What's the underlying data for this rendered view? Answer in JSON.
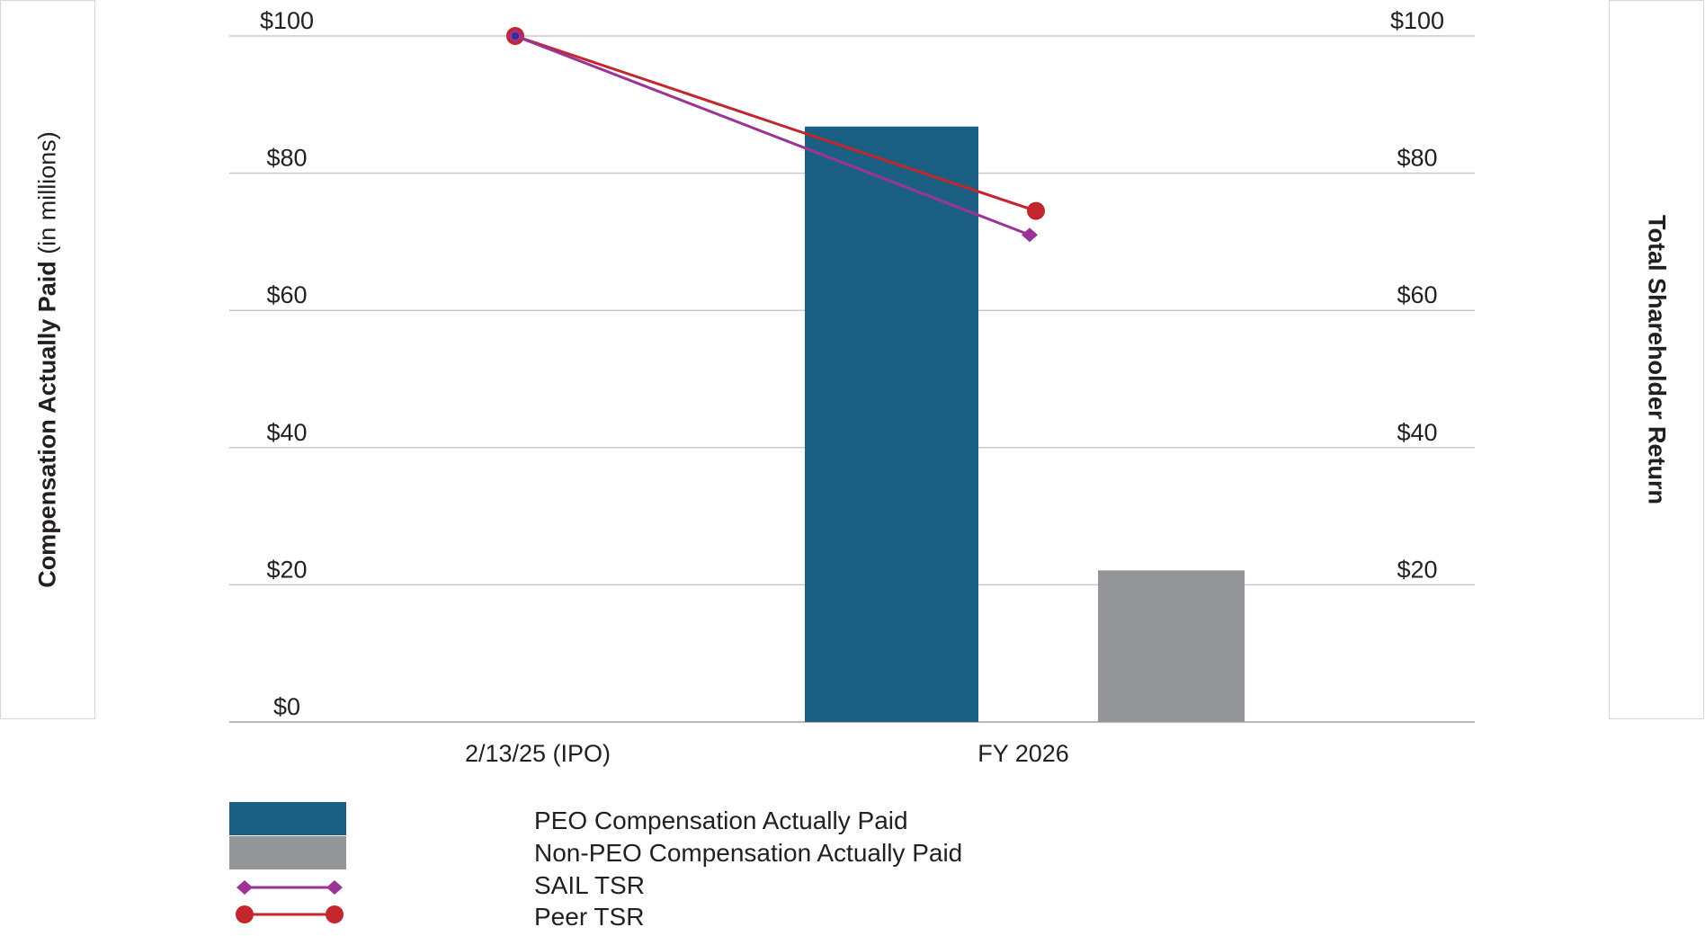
{
  "chart_data": {
    "type": "bar",
    "categories": [
      "2/13/25 (IPO)",
      "FY 2026"
    ],
    "y_left": {
      "label_bold": "Compensation Actually Paid",
      "label_normal": " (in millions)",
      "ticks": [
        "$0",
        "$20",
        "$40",
        "$60",
        "$80",
        "$100"
      ],
      "range": [
        0,
        100
      ]
    },
    "y_right": {
      "label": "Total Shareholder Return",
      "ticks": [
        "$20",
        "$40",
        "$60",
        "$80",
        "$100"
      ],
      "range": [
        0,
        100
      ]
    },
    "bars": [
      {
        "name": "PEO Compensation Actually Paid",
        "color": "#1b6083",
        "values": [
          null,
          86.8
        ]
      },
      {
        "name": "Non-PEO Compensation Actually Paid",
        "color": "#939598",
        "values": [
          null,
          22.1
        ]
      }
    ],
    "lines": [
      {
        "name": "SAIL TSR",
        "color": "#9b3496",
        "marker": "diamond",
        "values": [
          100,
          71.0
        ]
      },
      {
        "name": "Peer TSR",
        "color": "#c1272d",
        "marker": "circle",
        "values": [
          100,
          74.5
        ]
      }
    ],
    "grid": true,
    "legend_position": "bottom"
  }
}
